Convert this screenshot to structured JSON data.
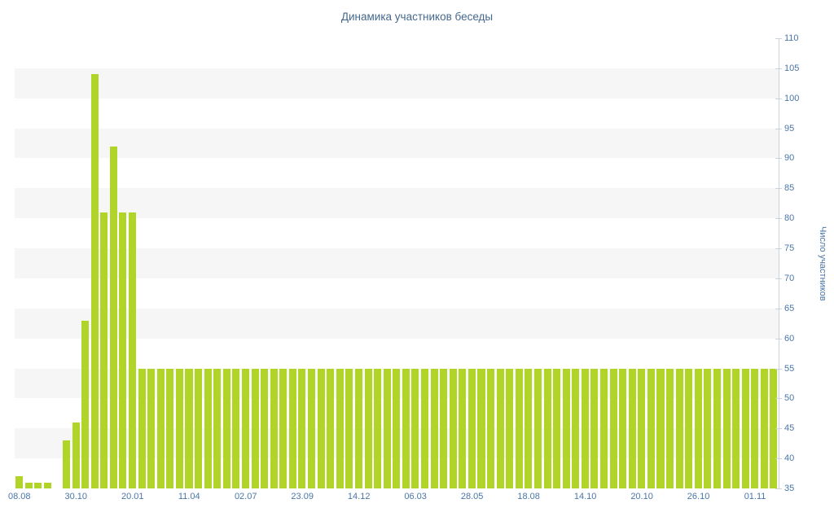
{
  "chart_data": {
    "type": "bar",
    "title": "Динамика участников беседы",
    "ylabel": "Число участников",
    "xlabel": "",
    "ylim": [
      35,
      110
    ],
    "y_ticks": [
      35,
      40,
      45,
      50,
      55,
      60,
      65,
      70,
      75,
      80,
      85,
      90,
      95,
      100,
      105,
      110
    ],
    "x_tick_labels": [
      "08.08",
      "30.10",
      "20.01",
      "11.04",
      "02.07",
      "23.09",
      "14.12",
      "06.03",
      "28.05",
      "18.08",
      "14.10",
      "20.10",
      "26.10",
      "01.11"
    ],
    "x_tick_bar_indices": [
      0,
      6,
      12,
      18,
      24,
      30,
      36,
      42,
      48,
      54,
      60,
      66,
      72,
      78
    ],
    "values": [
      37,
      36,
      36,
      36,
      35,
      43,
      46,
      63,
      104,
      81,
      92,
      81,
      81,
      55,
      55,
      55,
      55,
      55,
      55,
      55,
      55,
      55,
      55,
      55,
      55,
      55,
      55,
      55,
      55,
      55,
      55,
      55,
      55,
      55,
      55,
      55,
      55,
      55,
      55,
      55,
      55,
      55,
      55,
      55,
      55,
      55,
      55,
      55,
      55,
      55,
      55,
      55,
      55,
      55,
      55,
      55,
      55,
      55,
      55,
      55,
      55,
      55,
      55,
      55,
      55,
      55,
      55,
      55,
      55,
      55,
      55,
      55,
      55,
      55,
      55,
      55,
      55,
      55,
      55,
      55,
      55
    ],
    "grid": "alternating-horizontal-bands",
    "legend": null,
    "colors": {
      "bar": "#b0d528",
      "title": "#45688e",
      "tick_label": "#4a76a8",
      "stripe": "#f6f6f6",
      "axis_line": "#c8d3dd"
    }
  }
}
